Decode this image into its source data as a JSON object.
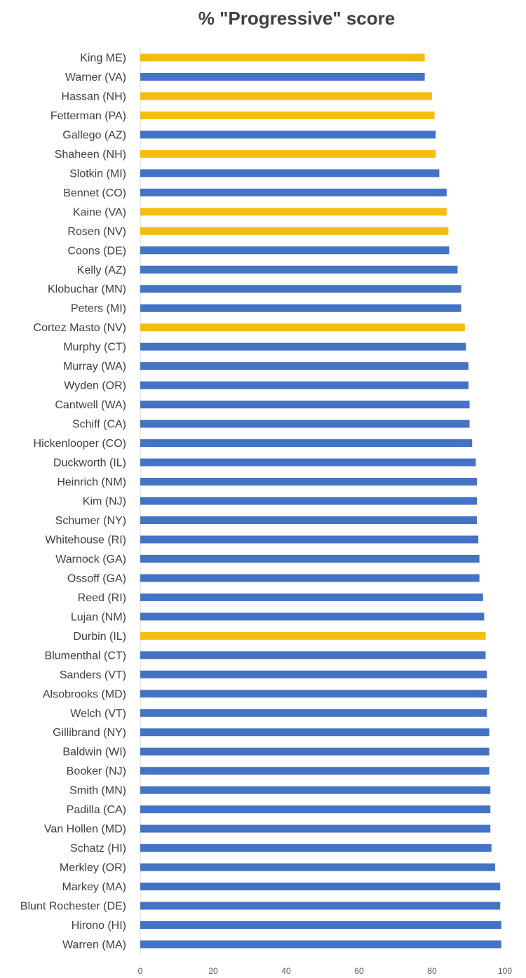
{
  "chart_data": {
    "type": "bar",
    "orientation": "horizontal",
    "title": "% \"Progressive\" score",
    "xlabel": "",
    "ylabel": "",
    "xlim": [
      0,
      100
    ],
    "ticks": [
      "0",
      "20",
      "40",
      "60",
      "80",
      "100"
    ],
    "tick_values": [
      0,
      20,
      40,
      60,
      80,
      100
    ],
    "grid": false,
    "legend": "none",
    "colors": {
      "default": "#4472C4",
      "highlight": "#F5BE0F"
    },
    "categories": [
      "King ME)",
      "Warner (VA)",
      "Hassan (NH)",
      "Fetterman (PA)",
      "Gallego (AZ)",
      "Shaheen (NH)",
      "Slotkin (MI)",
      "Bennet (CO)",
      "Kaine (VA)",
      "Rosen (NV)",
      "Coons (DE)",
      "Kelly (AZ)",
      "Klobuchar (MN)",
      "Peters (MI)",
      "Cortez Masto (NV)",
      "Murphy (CT)",
      "Murray (WA)",
      "Wyden (OR)",
      "Cantwell (WA)",
      "Schiff (CA)",
      "Hickenlooper (CO)",
      "Duckworth (IL)",
      "Heinrich (NM)",
      "Kim (NJ)",
      "Schumer (NY)",
      "Whitehouse (RI)",
      "Warnock (GA)",
      "Ossoff (GA)",
      "Reed (RI)",
      "Lujan (NM)",
      "Durbin (IL)",
      "Blumenthal (CT)",
      "Sanders (VT)",
      "Alsobrooks (MD)",
      "Welch (VT)",
      "Gillibrand (NY)",
      "Baldwin (WI)",
      "Booker (NJ)",
      "Smith (MN)",
      "Padilla (CA)",
      "Van Hollen (MD)",
      "Schatz (HI)",
      "Merkley (OR)",
      "Markey (MA)",
      "Blunt Rochester (DE)",
      "Hirono (HI)",
      "Warren (MA)"
    ],
    "values": [
      78,
      78,
      80,
      80.7,
      81,
      81,
      82,
      84,
      84,
      84.5,
      84.7,
      87,
      88,
      88,
      89,
      89.3,
      90,
      90,
      90.3,
      90.3,
      91,
      92,
      92.3,
      92.3,
      92.3,
      92.7,
      93,
      93,
      94,
      94.3,
      94.7,
      94.7,
      95,
      95,
      95,
      95.7,
      95.7,
      95.7,
      96,
      96,
      96,
      96.3,
      97.3,
      98.7,
      98.7,
      99,
      99
    ],
    "highlighted": [
      true,
      false,
      true,
      true,
      false,
      true,
      false,
      false,
      true,
      true,
      false,
      false,
      false,
      false,
      true,
      false,
      false,
      false,
      false,
      false,
      false,
      false,
      false,
      false,
      false,
      false,
      false,
      false,
      false,
      false,
      true,
      false,
      false,
      false,
      false,
      false,
      false,
      false,
      false,
      false,
      false,
      false,
      false,
      false,
      false,
      false,
      false
    ]
  }
}
